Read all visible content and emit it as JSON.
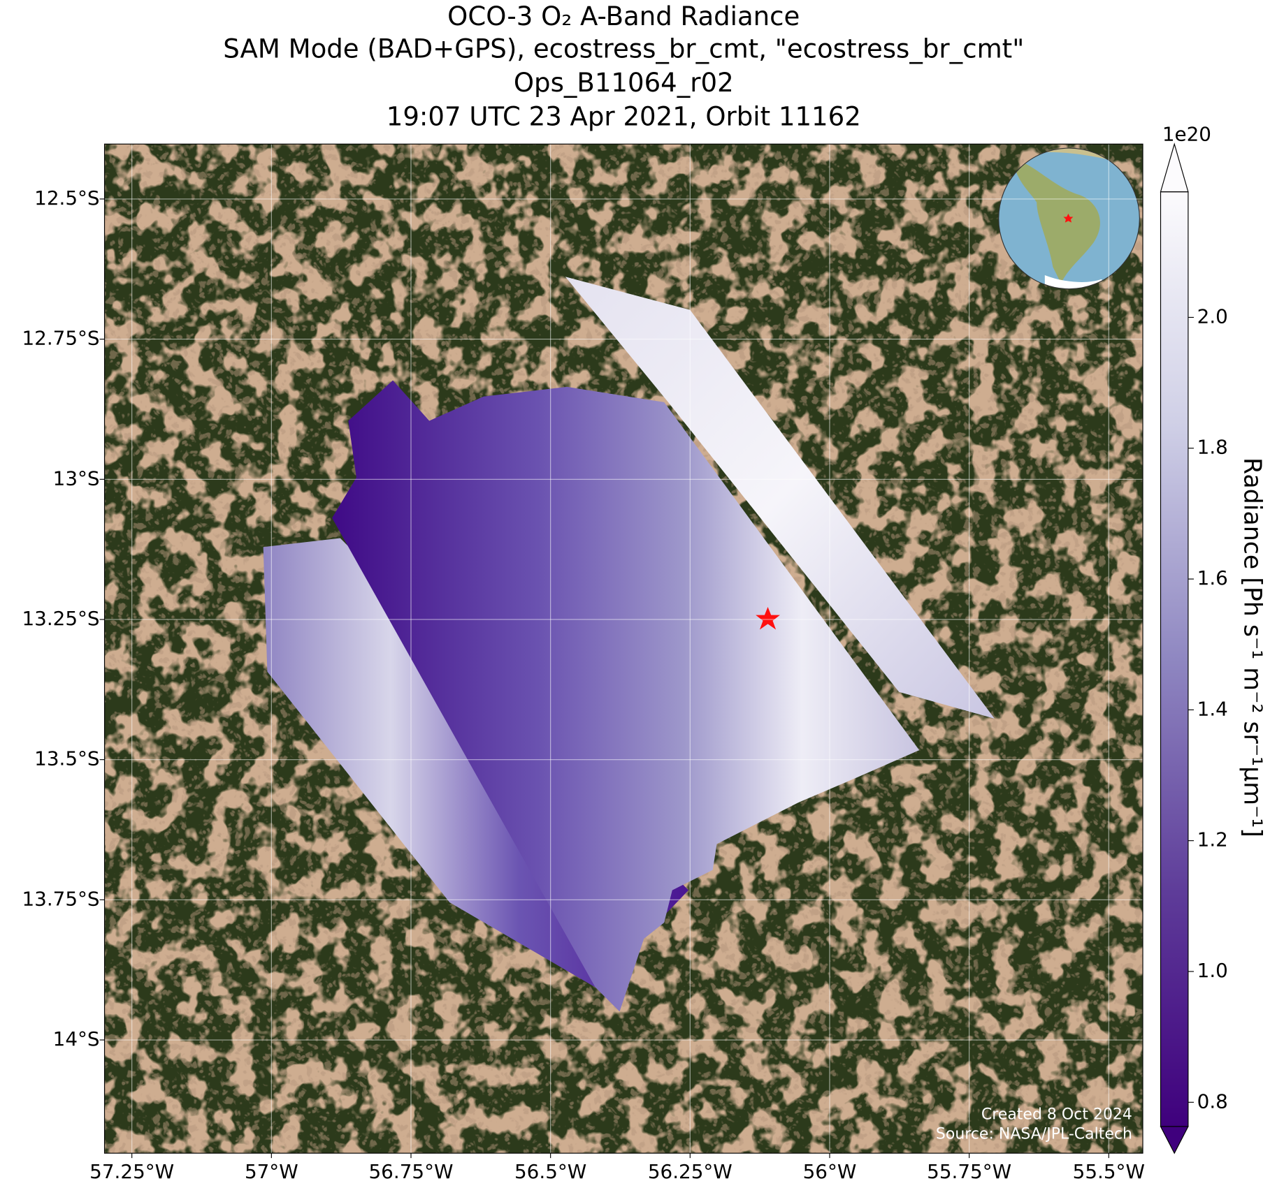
{
  "title": [
    "OCO-3 O₂ A-Band Radiance",
    "SAM Mode (BAD+GPS), ecostress_br_cmt, \"ecostress_br_cmt\"",
    "Ops_B11064_r02",
    "19:07 UTC 23 Apr 2021, Orbit 11162"
  ],
  "map": {
    "xlim": [
      -57.299,
      -55.439
    ],
    "ylim": [
      -14.202,
      -12.402
    ],
    "grid": true,
    "xticks": [
      {
        "value": -57.25,
        "label": "57.25°W"
      },
      {
        "value": -57,
        "label": "57°W"
      },
      {
        "value": -56.75,
        "label": "56.75°W"
      },
      {
        "value": -56.5,
        "label": "56.5°W"
      },
      {
        "value": -56.25,
        "label": "56.25°W"
      },
      {
        "value": -56,
        "label": "56°W"
      },
      {
        "value": -55.75,
        "label": "55.75°W"
      },
      {
        "value": -55.5,
        "label": "55.5°W"
      }
    ],
    "yticks": [
      {
        "value": -12.5,
        "label": "12.5°S"
      },
      {
        "value": -12.75,
        "label": "12.75°S"
      },
      {
        "value": -13,
        "label": "13°S"
      },
      {
        "value": -13.25,
        "label": "13.25°S"
      },
      {
        "value": -13.5,
        "label": "13.5°S"
      },
      {
        "value": -13.75,
        "label": "13.75°S"
      },
      {
        "value": -14,
        "label": "14°S"
      }
    ]
  },
  "colorbar": {
    "label": "Radiance [Ph s⁻¹ m⁻² sr⁻¹µm⁻¹]",
    "multiplier": "1e20",
    "lim": [
      0.763,
      2.192
    ],
    "ticks": [
      0.8,
      {
        "value": 1.0,
        "label": "1.0"
      },
      1.2,
      1.4,
      1.6,
      1.8,
      {
        "value": 2.0,
        "label": "2.0"
      }
    ]
  },
  "credits": [
    "Created 8 Oct 2024",
    "Source: NASA/JPL-Caltech"
  ]
}
